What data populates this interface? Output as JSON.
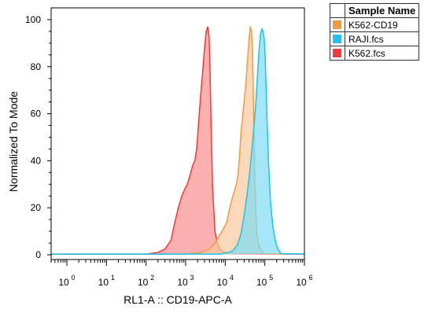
{
  "chart_data": {
    "type": "area",
    "xlabel": "RL1-A :: CD19-APC-A",
    "ylabel": "Normalized To Mode",
    "x_scale": "log",
    "xlim": [
      0.4,
      1000000
    ],
    "ylim": [
      -2,
      105
    ],
    "y_ticks": [
      0,
      20,
      40,
      60,
      80,
      100
    ],
    "x_ticks": [
      {
        "value": 1,
        "base": "10",
        "exp": "0"
      },
      {
        "value": 10,
        "base": "10",
        "exp": "1"
      },
      {
        "value": 100,
        "base": "10",
        "exp": "2"
      },
      {
        "value": 1000,
        "base": "10",
        "exp": "3"
      },
      {
        "value": 10000,
        "base": "10",
        "exp": "4"
      },
      {
        "value": 100000,
        "base": "10",
        "exp": "5"
      },
      {
        "value": 1000000,
        "base": "10",
        "exp": "6"
      }
    ],
    "legend_header": "Sample Name",
    "legend_position": "top-right",
    "series": [
      {
        "name": "K562.fcs",
        "color": "#f43a3a",
        "fill": "#f98f8f",
        "x": [
          0.4,
          100,
          200,
          300,
          420,
          520,
          650,
          800,
          950,
          1100,
          1300,
          1500,
          1700,
          1900,
          2100,
          2400,
          2700,
          3000,
          3300,
          3600,
          3900,
          4100,
          4400,
          4800,
          5500,
          6500,
          8000,
          12000,
          1000000
        ],
        "y": [
          0.3,
          0.3,
          1,
          2.5,
          6,
          13,
          20,
          25,
          28,
          30,
          34,
          38,
          40,
          45,
          55,
          68,
          78,
          88,
          95,
          97,
          93,
          80,
          55,
          28,
          10,
          4,
          1.5,
          0.5,
          0.3
        ]
      },
      {
        "name": "K562-CD19",
        "color": "#f59a3c",
        "fill": "#f9c99d",
        "x": [
          0.4,
          1000,
          2500,
          4000,
          5500,
          7000,
          9000,
          11000,
          13000,
          15000,
          17000,
          19000,
          21000,
          23000,
          25000,
          28000,
          31000,
          34000,
          37000,
          40000,
          43000,
          46000,
          49000,
          52000,
          56000,
          62000,
          70000,
          80000,
          95000,
          1000000
        ],
        "y": [
          0.3,
          0.3,
          1,
          2.5,
          5,
          8,
          11,
          14,
          20,
          24,
          27,
          30,
          34,
          42,
          52,
          60,
          68,
          75,
          84,
          92,
          97,
          95,
          85,
          62,
          30,
          10,
          4,
          2,
          0.5,
          0.3
        ]
      },
      {
        "name": "RAJI.fcs",
        "color": "#19c4ee",
        "fill": "#7ddcf3",
        "x": [
          0.4,
          8000,
          15000,
          20000,
          25000,
          30000,
          36000,
          42000,
          48000,
          54000,
          60000,
          66000,
          72000,
          78000,
          84000,
          90000,
          96000,
          102000,
          108000,
          115000,
          125000,
          140000,
          160000,
          190000,
          220000,
          260000,
          1000000
        ],
        "y": [
          0.3,
          0.3,
          1.5,
          4,
          9,
          17,
          26,
          36,
          46,
          56,
          66,
          78,
          88,
          94,
          96,
          95,
          92,
          84,
          70,
          55,
          38,
          22,
          12,
          5,
          2,
          0.5,
          0.3
        ]
      }
    ]
  }
}
